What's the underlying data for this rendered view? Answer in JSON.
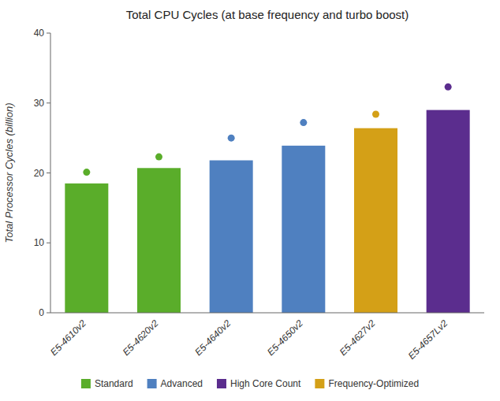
{
  "chart_data": {
    "type": "bar",
    "title": "Total CPU Cycles (at base frequency and turbo boost)",
    "ylabel": "Total Processor Cycles (billion)",
    "categories": [
      "E5-4610v2",
      "E5-4620v2",
      "E5-4640v2",
      "E5-4650v2",
      "E5-4627v2",
      "E5-4657Lv2"
    ],
    "series": [
      {
        "type": "bar",
        "values": [
          18.5,
          20.7,
          21.8,
          23.9,
          26.4,
          29.0
        ],
        "colors": [
          "#5aad2a",
          "#5aad2a",
          "#4f80c0",
          "#4f80c0",
          "#d4a017",
          "#5b2d8e"
        ]
      },
      {
        "type": "scatter",
        "marker": "circle",
        "values": [
          20.1,
          22.3,
          25.0,
          27.2,
          28.4,
          32.3
        ],
        "colors": [
          "#5aad2a",
          "#5aad2a",
          "#4f80c0",
          "#4f80c0",
          "#d4a017",
          "#5b2d8e"
        ]
      }
    ],
    "legend_items": [
      {
        "name": "Standard",
        "color": "#5aad2a"
      },
      {
        "name": "Advanced",
        "color": "#4f80c0"
      },
      {
        "name": "High Core Count",
        "color": "#5b2d8e"
      },
      {
        "name": "Frequency-Optimized",
        "color": "#d4a017"
      }
    ],
    "legend": "bottom",
    "ylim": [
      0,
      40
    ],
    "yticks": [
      0,
      10,
      20,
      30,
      40
    ],
    "grid": false
  }
}
